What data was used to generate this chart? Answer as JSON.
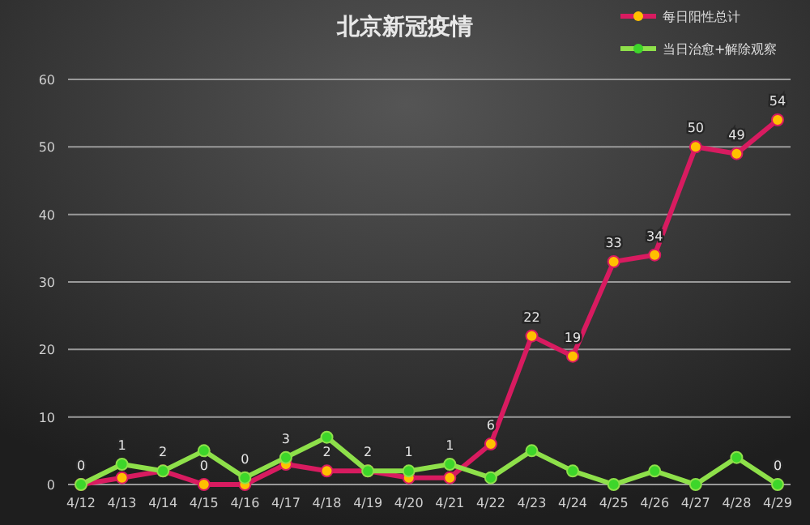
{
  "chart_data": {
    "type": "line",
    "title": "北京新冠疫情",
    "categories": [
      "4/12",
      "4/13",
      "4/14",
      "4/15",
      "4/16",
      "4/17",
      "4/18",
      "4/19",
      "4/20",
      "4/21",
      "4/22",
      "4/23",
      "4/24",
      "4/25",
      "4/26",
      "4/27",
      "4/28",
      "4/29"
    ],
    "series": [
      {
        "name": "每日阳性总计",
        "color": "#d81b60",
        "values": [
          0,
          1,
          2,
          0,
          0,
          3,
          2,
          2,
          1,
          1,
          6,
          22,
          19,
          33,
          34,
          50,
          49,
          54
        ],
        "value_labels": [
          "0",
          "1",
          "2",
          "0",
          "0",
          "3",
          "2",
          "2",
          "1",
          "1",
          "6",
          "22",
          "19",
          "33",
          "34",
          "50",
          "49",
          "54"
        ]
      },
      {
        "name": "当日治愈+解除观察",
        "color": "#8ee04a",
        "values": [
          0,
          3,
          2,
          5,
          1,
          4,
          7,
          2,
          2,
          3,
          1,
          5,
          2,
          0,
          2,
          0,
          4,
          0
        ],
        "value_labels": [
          null,
          null,
          null,
          null,
          null,
          null,
          null,
          null,
          null,
          null,
          null,
          null,
          null,
          null,
          null,
          null,
          null,
          "0"
        ]
      }
    ],
    "ylim": [
      0,
      60
    ],
    "yticks": [
      0,
      10,
      20,
      30,
      40,
      50,
      60
    ],
    "grid": "y",
    "legend": "top right",
    "marker": "circle",
    "line_style": "solid"
  }
}
